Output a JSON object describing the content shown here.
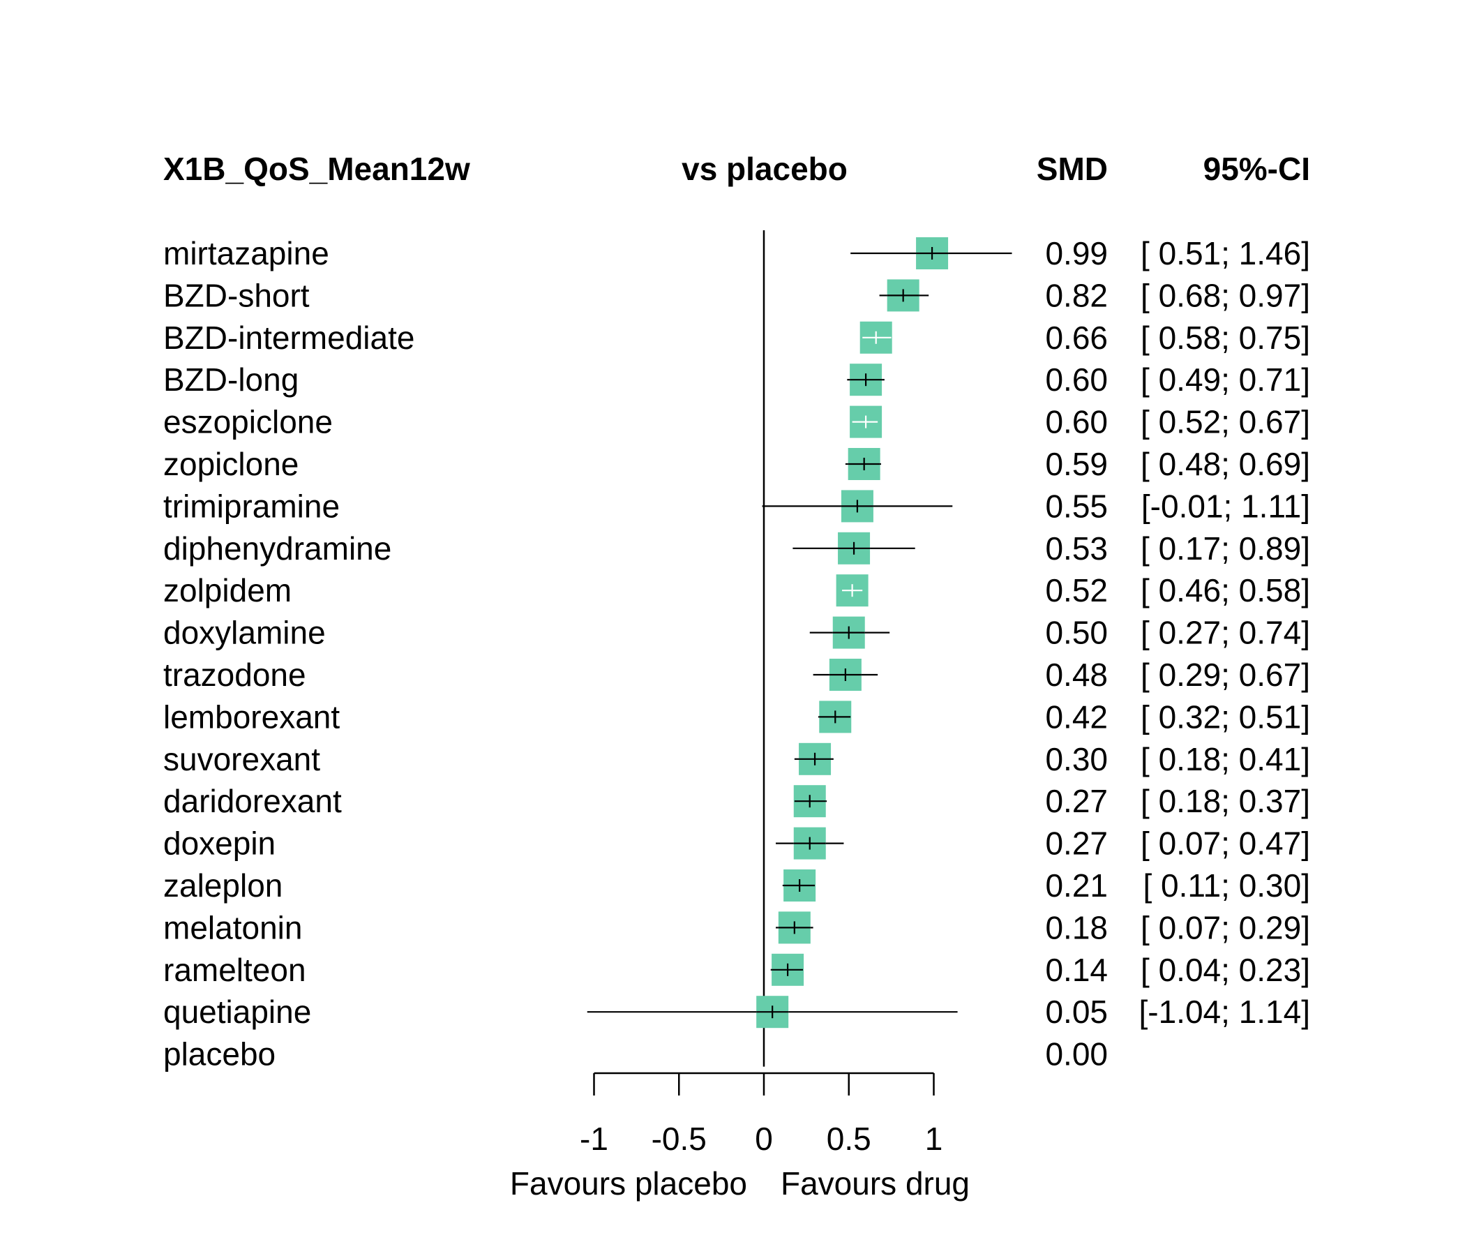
{
  "chart_data": {
    "type": "forest",
    "headers": {
      "outcome": "X1B_QoS_Mean12w",
      "comparison": "vs placebo",
      "effect": "SMD",
      "ci": "95%-CI"
    },
    "rows": [
      {
        "label": "mirtazapine",
        "smd": 0.99,
        "lower": 0.51,
        "upper": 1.46,
        "smd_text": "0.99",
        "ci_text": "[ 0.51; 1.46]"
      },
      {
        "label": "BZD-short",
        "smd": 0.82,
        "lower": 0.68,
        "upper": 0.97,
        "smd_text": "0.82",
        "ci_text": "[ 0.68; 0.97]"
      },
      {
        "label": "BZD-intermediate",
        "smd": 0.66,
        "lower": 0.58,
        "upper": 0.75,
        "smd_text": "0.66",
        "ci_text": "[ 0.58; 0.75]"
      },
      {
        "label": "BZD-long",
        "smd": 0.6,
        "lower": 0.49,
        "upper": 0.71,
        "smd_text": "0.60",
        "ci_text": "[ 0.49; 0.71]"
      },
      {
        "label": "eszopiclone",
        "smd": 0.6,
        "lower": 0.52,
        "upper": 0.67,
        "smd_text": "0.60",
        "ci_text": "[ 0.52; 0.67]"
      },
      {
        "label": "zopiclone",
        "smd": 0.59,
        "lower": 0.48,
        "upper": 0.69,
        "smd_text": "0.59",
        "ci_text": "[ 0.48; 0.69]"
      },
      {
        "label": "trimipramine",
        "smd": 0.55,
        "lower": -0.01,
        "upper": 1.11,
        "smd_text": "0.55",
        "ci_text": "[-0.01; 1.11]"
      },
      {
        "label": "diphenydramine",
        "smd": 0.53,
        "lower": 0.17,
        "upper": 0.89,
        "smd_text": "0.53",
        "ci_text": "[ 0.17; 0.89]"
      },
      {
        "label": "zolpidem",
        "smd": 0.52,
        "lower": 0.46,
        "upper": 0.58,
        "smd_text": "0.52",
        "ci_text": "[ 0.46; 0.58]"
      },
      {
        "label": "doxylamine",
        "smd": 0.5,
        "lower": 0.27,
        "upper": 0.74,
        "smd_text": "0.50",
        "ci_text": "[ 0.27; 0.74]"
      },
      {
        "label": "trazodone",
        "smd": 0.48,
        "lower": 0.29,
        "upper": 0.67,
        "smd_text": "0.48",
        "ci_text": "[ 0.29; 0.67]"
      },
      {
        "label": "lemborexant",
        "smd": 0.42,
        "lower": 0.32,
        "upper": 0.51,
        "smd_text": "0.42",
        "ci_text": "[ 0.32; 0.51]"
      },
      {
        "label": "suvorexant",
        "smd": 0.3,
        "lower": 0.18,
        "upper": 0.41,
        "smd_text": "0.30",
        "ci_text": "[ 0.18; 0.41]"
      },
      {
        "label": "daridorexant",
        "smd": 0.27,
        "lower": 0.18,
        "upper": 0.37,
        "smd_text": "0.27",
        "ci_text": "[ 0.18; 0.37]"
      },
      {
        "label": "doxepin",
        "smd": 0.27,
        "lower": 0.07,
        "upper": 0.47,
        "smd_text": "0.27",
        "ci_text": "[ 0.07; 0.47]"
      },
      {
        "label": "zaleplon",
        "smd": 0.21,
        "lower": 0.11,
        "upper": 0.3,
        "smd_text": "0.21",
        "ci_text": "[ 0.11; 0.30]"
      },
      {
        "label": "melatonin",
        "smd": 0.18,
        "lower": 0.07,
        "upper": 0.29,
        "smd_text": "0.18",
        "ci_text": "[ 0.07; 0.29]"
      },
      {
        "label": "ramelteon",
        "smd": 0.14,
        "lower": 0.04,
        "upper": 0.23,
        "smd_text": "0.14",
        "ci_text": "[ 0.04; 0.23]"
      },
      {
        "label": "quetiapine",
        "smd": 0.05,
        "lower": -1.04,
        "upper": 1.14,
        "smd_text": "0.05",
        "ci_text": "[-1.04; 1.14]"
      },
      {
        "label": "placebo",
        "smd": 0.0,
        "lower": null,
        "upper": null,
        "smd_text": "0.00",
        "ci_text": ""
      }
    ],
    "x_ticks": [
      -1,
      -0.5,
      0,
      0.5,
      1
    ],
    "x_tick_labels": [
      "-1",
      "-0.5",
      "0",
      "0.5",
      "1"
    ],
    "xlim": [
      -1,
      1
    ],
    "favours_left": "Favours placebo",
    "favours_right": "Favours drug",
    "reference_line": 0,
    "colors": {
      "box": "#66CDAA",
      "line": "#000000",
      "inside_whisker": "#ffffff"
    }
  }
}
